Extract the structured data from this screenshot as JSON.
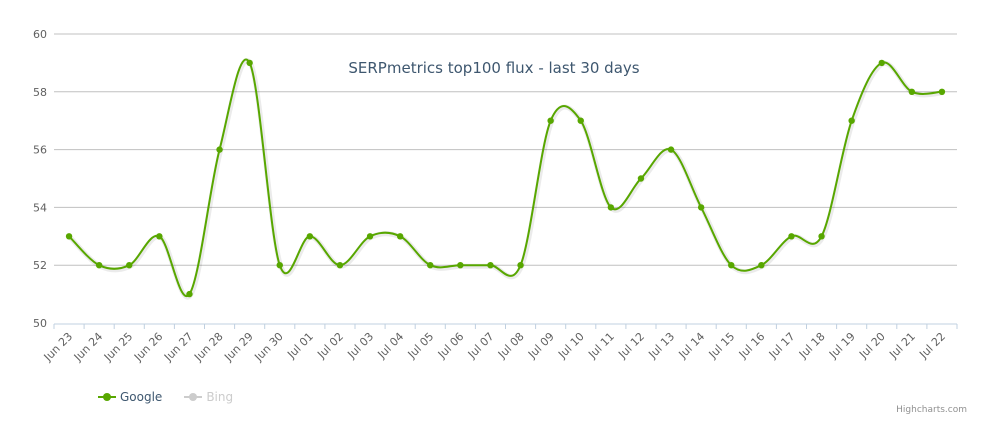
{
  "chart_data": {
    "type": "line",
    "title": "SERPmetrics top100 flux - last 30 days",
    "xlabel": "",
    "ylabel": "",
    "ylim": [
      50,
      60
    ],
    "yticks": [
      50,
      52,
      54,
      56,
      58,
      60
    ],
    "grid": true,
    "legend_position": "bottom-left",
    "categories": [
      "Jun 23",
      "Jun 24",
      "Jun 25",
      "Jun 26",
      "Jun 27",
      "Jun 28",
      "Jun 29",
      "Jun 30",
      "Jul 01",
      "Jul 02",
      "Jul 03",
      "Jul 04",
      "Jul 05",
      "Jul 06",
      "Jul 07",
      "Jul 08",
      "Jul 09",
      "Jul 10",
      "Jul 11",
      "Jul 12",
      "Jul 13",
      "Jul 14",
      "Jul 15",
      "Jul 16",
      "Jul 17",
      "Jul 18",
      "Jul 19",
      "Jul 20",
      "Jul 21",
      "Jul 22"
    ],
    "series": [
      {
        "name": "Google",
        "color": "#58a700",
        "visible": true,
        "values": [
          53,
          52,
          52,
          53,
          51,
          56,
          59,
          52,
          53,
          52,
          53,
          53,
          52,
          52,
          52,
          52,
          57,
          57,
          54,
          55,
          56,
          54,
          52,
          52,
          53,
          53,
          57,
          59,
          58,
          58
        ]
      },
      {
        "name": "Bing",
        "color": "#cccccc",
        "visible": false,
        "values": []
      }
    ]
  },
  "legend": {
    "items": [
      {
        "label": "Google",
        "color": "#58a700",
        "active": true
      },
      {
        "label": "Bing",
        "color": "#cccccc",
        "active": false
      }
    ]
  },
  "credits": "Highcharts.com"
}
